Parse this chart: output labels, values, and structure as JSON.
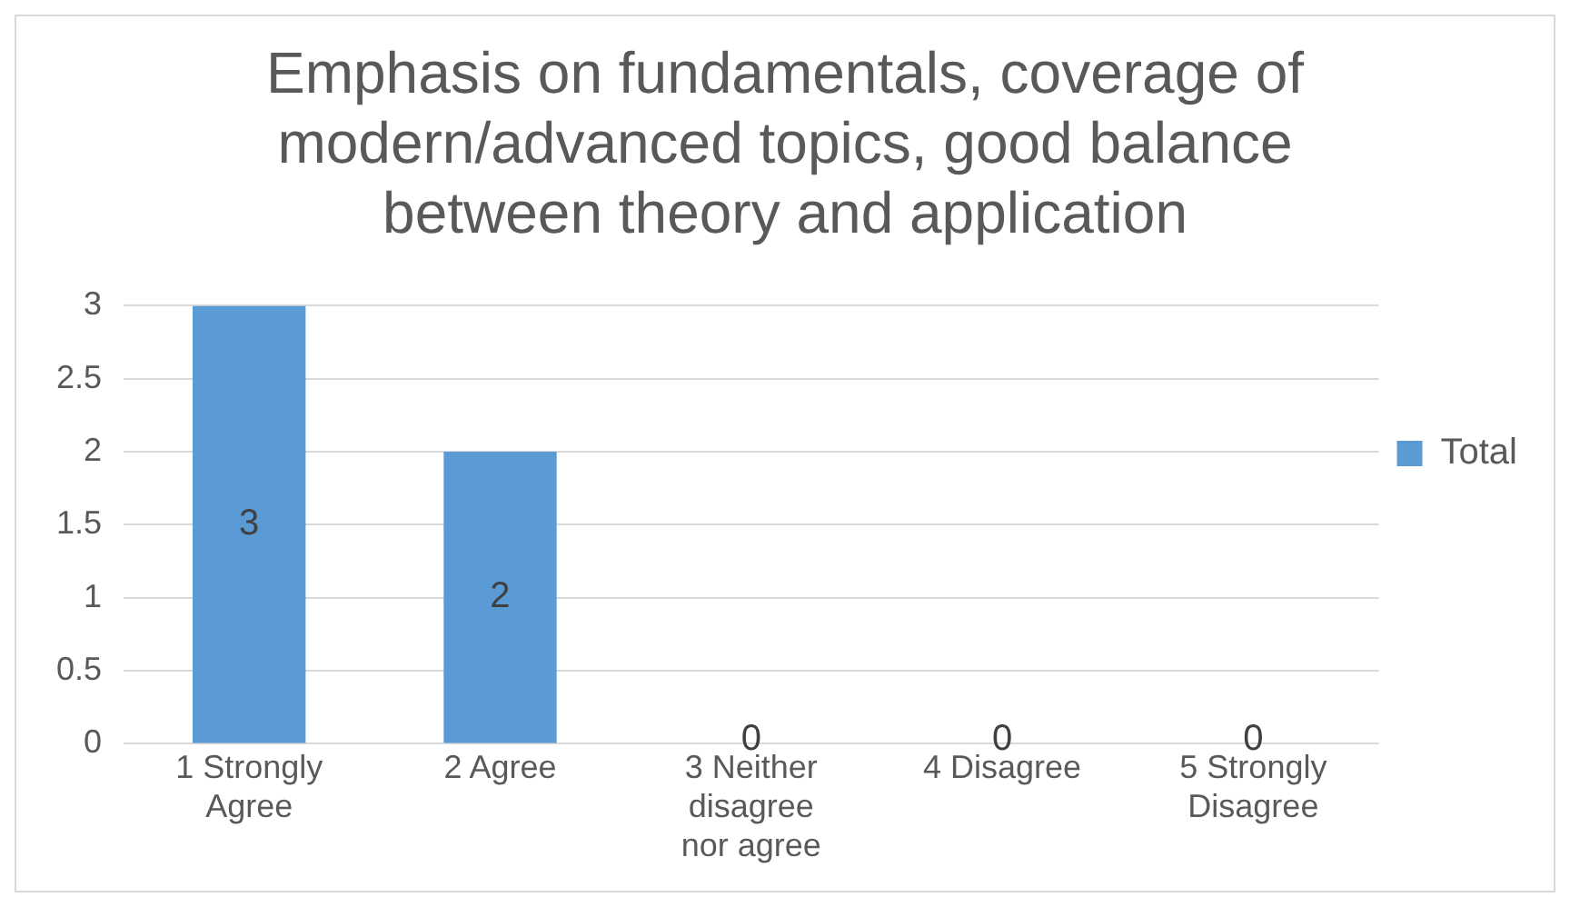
{
  "chart_data": {
    "type": "bar",
    "title": "Emphasis on fundamentals, coverage of modern/advanced topics, good balance between theory and application",
    "categories": [
      "1 Strongly Agree",
      "2 Agree",
      "3 Neither disagree nor agree",
      "4 Disagree",
      "5 Strongly Disagree"
    ],
    "series": [
      {
        "name": "Total",
        "color": "#5b9bd5",
        "values": [
          3,
          2,
          0,
          0,
          0
        ]
      }
    ],
    "ylim": [
      0,
      3
    ],
    "yticks": [
      0,
      0.5,
      1,
      1.5,
      2,
      2.5,
      3
    ],
    "grid": "y",
    "legend": "right",
    "data_labels": true
  }
}
